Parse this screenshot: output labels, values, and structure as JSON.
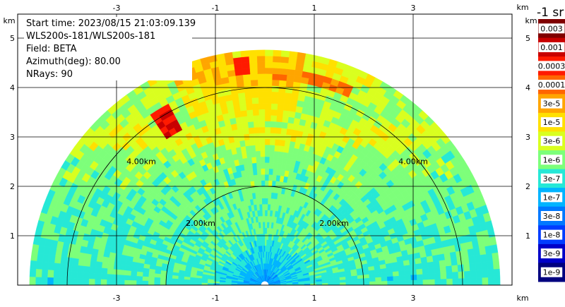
{
  "plot": {
    "km_label": "km",
    "x_ticks": [
      "-3",
      "-1",
      "1",
      "3"
    ],
    "y_ticks": [
      "1",
      "2",
      "3",
      "4",
      "5"
    ],
    "range_ring_labels": [
      "4.00km",
      "4.00km",
      "2.00km",
      "2.00km"
    ]
  },
  "info": {
    "start_time": "Start time: 2023/08/15 21:03:09.139",
    "instrument": "WLS200s-181/WLS200s-181",
    "field": "Field: BETA",
    "azimuth": "Azimuth(deg): 80.00",
    "nrays": "NRays: 90"
  },
  "colorbar": {
    "title": "-1 sr",
    "labels": [
      "0.003",
      "0.001",
      "0.0003",
      "0.0001",
      "3e-5",
      "1e-5",
      "3e-6",
      "1e-6",
      "3e-7",
      "1e-7",
      "3e-8",
      "1e-8",
      "3e-9",
      "1e-9"
    ],
    "colors": [
      "#7f0000",
      "#c80000",
      "#ff1a00",
      "#ff6600",
      "#ffa500",
      "#ffe000",
      "#d9ff1f",
      "#7dff7a",
      "#26e8d6",
      "#00b4ff",
      "#0078ff",
      "#003cff",
      "#0000c8",
      "#00007f"
    ]
  }
}
